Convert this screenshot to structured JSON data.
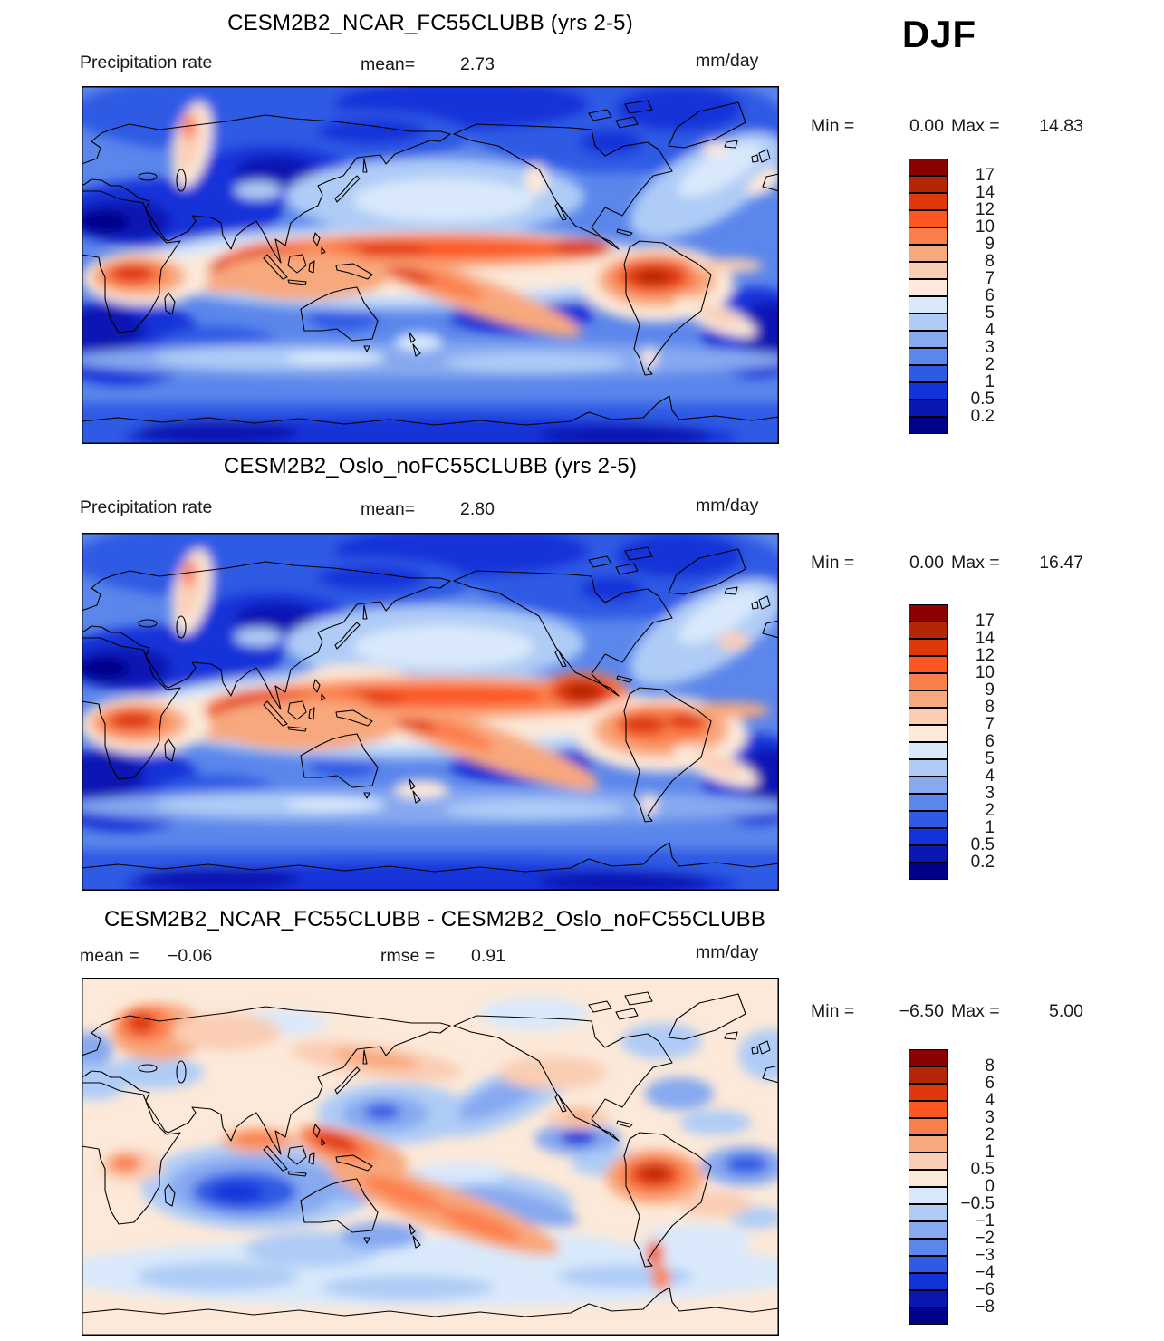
{
  "season_label": "DJF",
  "colorbar_colors": [
    "#8B0000",
    "#B52604",
    "#E0380C",
    "#FC5622",
    "#FB7F4B",
    "#F8A87D",
    "#FACDB4",
    "#FCE9D9",
    "#D9E9FB",
    "#AFCCF6",
    "#86A9F0",
    "#5B86EB",
    "#2F5AE4",
    "#1233D9",
    "#0A18B2",
    "#00008B"
  ],
  "panels": [
    {
      "title": "CESM2B2_NCAR_FC55CLUBB (yrs 2-5)",
      "field_label": "Precipitation rate",
      "mean_label": "mean=",
      "mean_value": "2.73",
      "units": "mm/day",
      "min_label": "Min =",
      "min_value": "0.00",
      "max_label": "Max =",
      "max_value": "14.83",
      "colorbar_labels": [
        "17",
        "14",
        "12",
        "10",
        "9",
        "8",
        "7",
        "6",
        "5",
        "4",
        "3",
        "2",
        "1",
        "0.5",
        "0.2"
      ]
    },
    {
      "title": "CESM2B2_Oslo_noFC55CLUBB (yrs 2-5)",
      "field_label": "Precipitation rate",
      "mean_label": "mean=",
      "mean_value": "2.80",
      "units": "mm/day",
      "min_label": "Min =",
      "min_value": "0.00",
      "max_label": "Max =",
      "max_value": "16.47",
      "colorbar_labels": [
        "17",
        "14",
        "12",
        "10",
        "9",
        "8",
        "7",
        "6",
        "5",
        "4",
        "3",
        "2",
        "1",
        "0.5",
        "0.2"
      ]
    },
    {
      "title": "CESM2B2_NCAR_FC55CLUBB - CESM2B2_Oslo_noFC55CLUBB",
      "mean_label": "mean =",
      "mean_value": "−0.06",
      "rmse_label": "rmse =",
      "rmse_value": "0.91",
      "units": "mm/day",
      "min_label": "Min =",
      "min_value": "−6.50",
      "max_label": "Max =",
      "max_value": "5.00",
      "colorbar_labels": [
        "8",
        "6",
        "4",
        "3",
        "2",
        "1",
        "0.5",
        "0",
        "−0.5",
        "−1",
        "−2",
        "−3",
        "−4",
        "−6",
        "−8"
      ]
    }
  ],
  "chart_data": [
    {
      "type": "heatmap",
      "title": "CESM2B2_NCAR_FC55CLUBB (yrs 2-5)",
      "variable": "Precipitation rate",
      "units": "mm/day",
      "season": "DJF",
      "mean": 2.73,
      "min": 0.0,
      "max": 14.83,
      "contour_levels": [
        0.2,
        0.5,
        1,
        2,
        3,
        4,
        5,
        6,
        7,
        8,
        9,
        10,
        12,
        14,
        17
      ],
      "projection": "global lat-lon map, Pacific-centered (0E-360E)",
      "legend_position": "right colorbar, blue(low)-to-red(high)"
    },
    {
      "type": "heatmap",
      "title": "CESM2B2_Oslo_noFC55CLUBB (yrs 2-5)",
      "variable": "Precipitation rate",
      "units": "mm/day",
      "season": "DJF",
      "mean": 2.8,
      "min": 0.0,
      "max": 16.47,
      "contour_levels": [
        0.2,
        0.5,
        1,
        2,
        3,
        4,
        5,
        6,
        7,
        8,
        9,
        10,
        12,
        14,
        17
      ],
      "projection": "global lat-lon map, Pacific-centered (0E-360E)",
      "legend_position": "right colorbar, blue(low)-to-red(high)"
    },
    {
      "type": "heatmap",
      "title": "CESM2B2_NCAR_FC55CLUBB - CESM2B2_Oslo_noFC55CLUBB",
      "variable": "Precipitation rate difference",
      "units": "mm/day",
      "season": "DJF",
      "mean": -0.06,
      "rmse": 0.91,
      "min": -6.5,
      "max": 5.0,
      "contour_levels": [
        -8,
        -6,
        -4,
        -3,
        -2,
        -1,
        -0.5,
        0,
        0.5,
        1,
        2,
        3,
        4,
        6,
        8
      ],
      "projection": "global lat-lon map, Pacific-centered (0E-360E)",
      "legend_position": "right colorbar, blue(negative)-to-red(positive)"
    }
  ]
}
